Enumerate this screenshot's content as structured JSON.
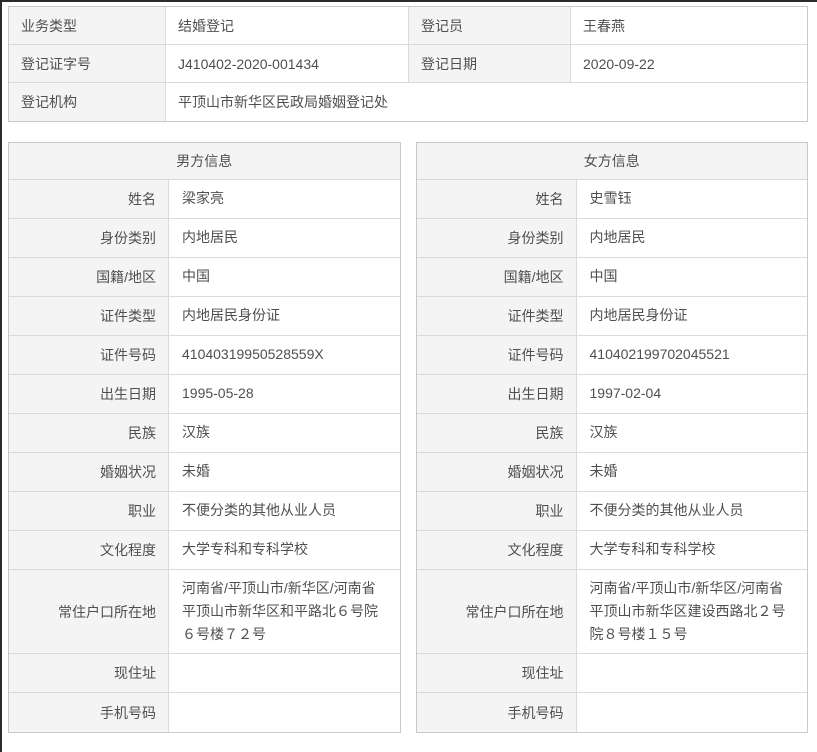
{
  "colors": {
    "label_bg": "#f4f4f4",
    "border": "#dbdbdb",
    "outer_border": "#c9c9c9",
    "text": "#4f4f4f",
    "frame": "#2b2b2b"
  },
  "summary": {
    "rows": [
      {
        "c1": "业务类型",
        "c2": "结婚登记",
        "c3": "登记员",
        "c4": "王春燕"
      },
      {
        "c1": "登记证字号",
        "c2": "J410402-2020-001434",
        "c3": "登记日期",
        "c4": "2020-09-22"
      },
      {
        "c1": "登记机构",
        "c2": "平顶山市新华区民政局婚姻登记处"
      }
    ]
  },
  "male": {
    "title": "男方信息",
    "fields": [
      {
        "label": "姓名",
        "value": "梁家亮"
      },
      {
        "label": "身份类别",
        "value": "内地居民"
      },
      {
        "label": "国籍/地区",
        "value": "中国"
      },
      {
        "label": "证件类型",
        "value": "内地居民身份证"
      },
      {
        "label": "证件号码",
        "value": "41040319950528559X"
      },
      {
        "label": "出生日期",
        "value": "1995-05-28"
      },
      {
        "label": "民族",
        "value": "汉族"
      },
      {
        "label": "婚姻状况",
        "value": "未婚"
      },
      {
        "label": "职业",
        "value": "不便分类的其他从业人员"
      },
      {
        "label": "文化程度",
        "value": "大学专科和专科学校"
      },
      {
        "label": "常住户口所在地",
        "value": "河南省/平顶山市/新华区/河南省平顶山市新华区和平路北６号院６号楼７２号"
      },
      {
        "label": "现住址",
        "value": ""
      },
      {
        "label": "手机号码",
        "value": ""
      }
    ]
  },
  "female": {
    "title": "女方信息",
    "fields": [
      {
        "label": "姓名",
        "value": "史雪钰"
      },
      {
        "label": "身份类别",
        "value": "内地居民"
      },
      {
        "label": "国籍/地区",
        "value": "中国"
      },
      {
        "label": "证件类型",
        "value": "内地居民身份证"
      },
      {
        "label": "证件号码",
        "value": "410402199702045521"
      },
      {
        "label": "出生日期",
        "value": "1997-02-04"
      },
      {
        "label": "民族",
        "value": "汉族"
      },
      {
        "label": "婚姻状况",
        "value": "未婚"
      },
      {
        "label": "职业",
        "value": "不便分类的其他从业人员"
      },
      {
        "label": "文化程度",
        "value": "大学专科和专科学校"
      },
      {
        "label": "常住户口所在地",
        "value": "河南省/平顶山市/新华区/河南省平顶山市新华区建设西路北２号院８号楼１５号"
      },
      {
        "label": "现住址",
        "value": ""
      },
      {
        "label": "手机号码",
        "value": ""
      }
    ]
  }
}
